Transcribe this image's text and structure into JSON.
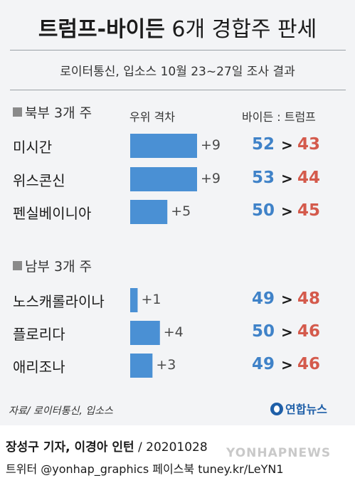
{
  "header": {
    "title_bold": "트럼프-바이든",
    "title_light": "6개 경합주 판세",
    "subtitle": "로이터통신, 입소스 10월 23~27일 조사 결과"
  },
  "columns": {
    "margin_header": "우위 격차",
    "poll_header": "바이든 : 트럼프"
  },
  "sections": {
    "north": "북부 3개 주",
    "south": "남부 3개 주"
  },
  "chart_data": {
    "type": "bar",
    "orientation": "horizontal",
    "title": "트럼프-바이든 6개 경합주 판세",
    "subtitle": "로이터통신, 입소스 10월 23~27일 조사 결과",
    "xlabel": "우위 격차",
    "groups": [
      "북부 3개 주",
      "남부 3개 주"
    ],
    "categories": [
      "미시간",
      "위스콘신",
      "펜실베이니아",
      "노스캐롤라이나",
      "플로리다",
      "애리조나"
    ],
    "group_index": [
      0,
      0,
      0,
      1,
      1,
      1
    ],
    "margin_labels": [
      "+9",
      "+9",
      "+5",
      "+1",
      "+4",
      "+3"
    ],
    "values": [
      9,
      9,
      5,
      1,
      4,
      3
    ],
    "biden": [
      52,
      53,
      50,
      49,
      50,
      49
    ],
    "trump": [
      43,
      44,
      45,
      48,
      46,
      46
    ],
    "xlim": [
      0,
      9
    ]
  },
  "colors": {
    "bar": "#4a90d4",
    "biden": "#3f82c8",
    "trump": "#d45a4c",
    "background": "#f3f4f6"
  },
  "footer": {
    "source": "자료/ 로이터통신, 입소스",
    "logo": "연합뉴스",
    "credit_bold": "장성구 기자, 이경아 인턴",
    "credit_date": "/ 20201028",
    "social": "트위터 @yonhap_graphics 페이스북 tuney.kr/LeYN1",
    "watermark": "YONHAPNEWS"
  }
}
